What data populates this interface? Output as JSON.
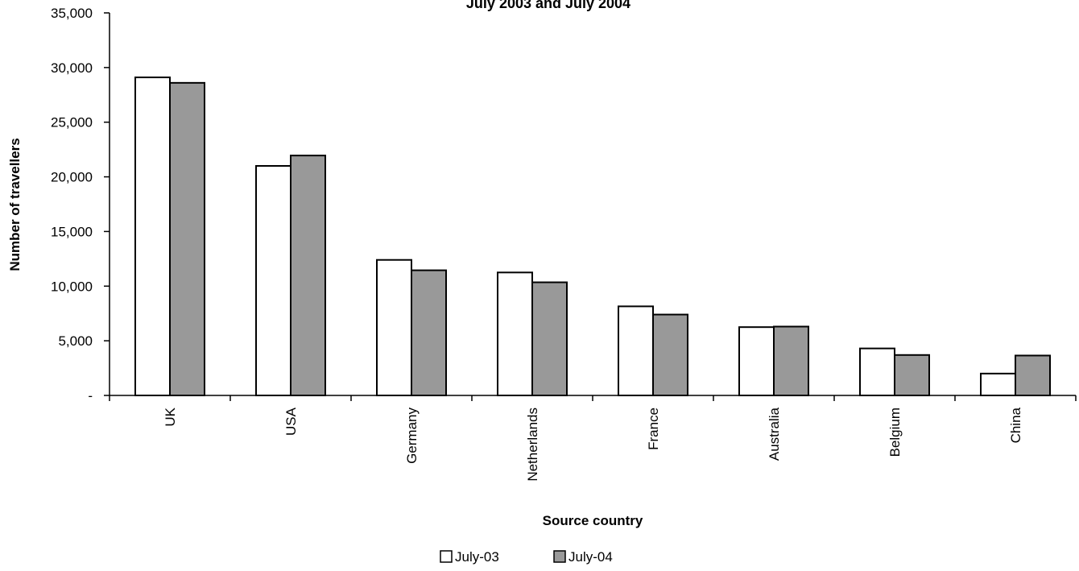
{
  "chart_data": {
    "type": "bar",
    "title": "July 2003 and July 2004",
    "xlabel": "Source country",
    "ylabel": "Number of travellers",
    "categories": [
      "UK",
      "USA",
      "Germany",
      "Netherlands",
      "France",
      "Australia",
      "Belgium",
      "China"
    ],
    "series": [
      {
        "name": "July-03",
        "color": "#ffffff",
        "values": [
          29100,
          21000,
          12400,
          11250,
          8150,
          6250,
          4300,
          2000
        ]
      },
      {
        "name": "July-04",
        "color": "#999999",
        "values": [
          28600,
          21950,
          11450,
          10350,
          7400,
          6300,
          3700,
          3650
        ]
      }
    ],
    "ylim": [
      0,
      35000
    ],
    "yticks": [
      0,
      5000,
      10000,
      15000,
      20000,
      25000,
      30000,
      35000
    ],
    "ytick_labels": [
      "-",
      "5,000",
      "10,000",
      "15,000",
      "20,000",
      "25,000",
      "30,000",
      "35,000"
    ],
    "grid": false,
    "legend_position": "bottom-center"
  }
}
